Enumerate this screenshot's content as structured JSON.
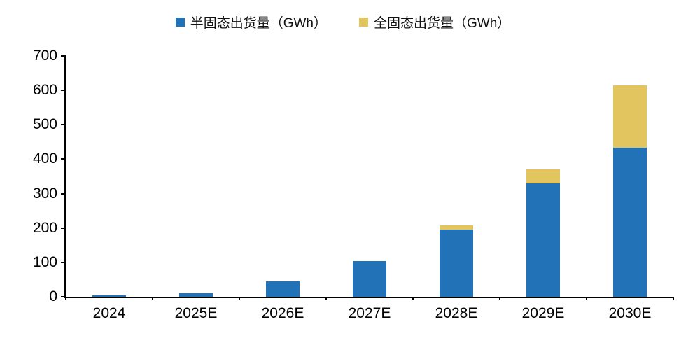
{
  "chart_data": {
    "type": "bar",
    "stacked": true,
    "title": "",
    "xlabel": "",
    "ylabel": "",
    "categories": [
      "2024",
      "2025E",
      "2026E",
      "2027E",
      "2028E",
      "2029E",
      "2030E"
    ],
    "series": [
      {
        "name": "半固态出货量（GWh）",
        "color": "#2172B6",
        "values": [
          5,
          10,
          45,
          103,
          195,
          330,
          433
        ]
      },
      {
        "name": "全固态出货量（GWh）",
        "color": "#E3C55F",
        "values": [
          0,
          0,
          0,
          0,
          12,
          40,
          182
        ]
      }
    ],
    "ylim": [
      0,
      700
    ],
    "yticks": [
      0,
      100,
      200,
      300,
      400,
      500,
      600,
      700
    ],
    "grid": false,
    "legend_position": "top"
  }
}
